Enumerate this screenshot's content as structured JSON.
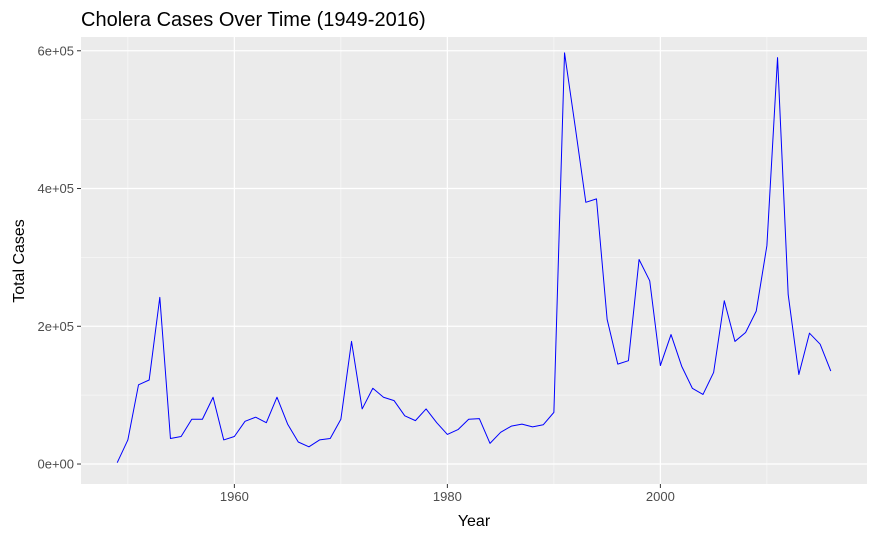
{
  "chart_data": {
    "type": "line",
    "title": "Cholera Cases Over Time (1949-2016)",
    "xlabel": "Year",
    "ylabel": "Total Cases",
    "xlim": [
      1945.6,
      2019.4
    ],
    "ylim": [
      -29000,
      620000
    ],
    "x_ticks": [
      {
        "value": 1960,
        "label": "1960"
      },
      {
        "value": 1980,
        "label": "1980"
      },
      {
        "value": 2000,
        "label": "2000"
      }
    ],
    "y_ticks": [
      {
        "value": 0,
        "label": "0e+00"
      },
      {
        "value": 200000,
        "label": "2e+05"
      },
      {
        "value": 400000,
        "label": "4e+05"
      },
      {
        "value": 600000,
        "label": "6e+05"
      }
    ],
    "grid": true,
    "legend": "none",
    "colors": {
      "line": "#0000ff",
      "panel": "#ebebeb",
      "grid": "#ffffff"
    },
    "series": [
      {
        "x": [
          1949,
          1950,
          1951,
          1952,
          1953,
          1954,
          1955,
          1956,
          1957,
          1958,
          1959,
          1960,
          1961,
          1962,
          1963,
          1964,
          1965,
          1966,
          1967,
          1968,
          1969,
          1970,
          1971,
          1972,
          1973,
          1974,
          1975,
          1976,
          1977,
          1978,
          1979,
          1980,
          1981,
          1982,
          1983,
          1984,
          1985,
          1986,
          1987,
          1988,
          1989,
          1990,
          1991,
          1992,
          1993,
          1994,
          1995,
          1996,
          1997,
          1998,
          1999,
          2000,
          2001,
          2002,
          2003,
          2004,
          2005,
          2006,
          2007,
          2008,
          2009,
          2010,
          2011,
          2012,
          2013,
          2014,
          2015,
          2016
        ],
        "values": [
          2000,
          35000,
          115000,
          122000,
          242000,
          37000,
          40000,
          65000,
          65000,
          97000,
          35000,
          40000,
          62000,
          68000,
          60000,
          97000,
          58000,
          32000,
          25000,
          35000,
          37000,
          65000,
          178000,
          80000,
          110000,
          97000,
          92000,
          70000,
          63000,
          80000,
          60000,
          43000,
          50000,
          65000,
          66000,
          30000,
          46000,
          55000,
          58000,
          54000,
          57000,
          75000,
          597000,
          490000,
          380000,
          385000,
          210000,
          145000,
          150000,
          297000,
          266000,
          143000,
          188000,
          142000,
          110000,
          101000,
          133000,
          237000,
          178000,
          191000,
          222000,
          317000,
          590000,
          246000,
          130000,
          190000,
          174000,
          135000
        ]
      }
    ]
  }
}
